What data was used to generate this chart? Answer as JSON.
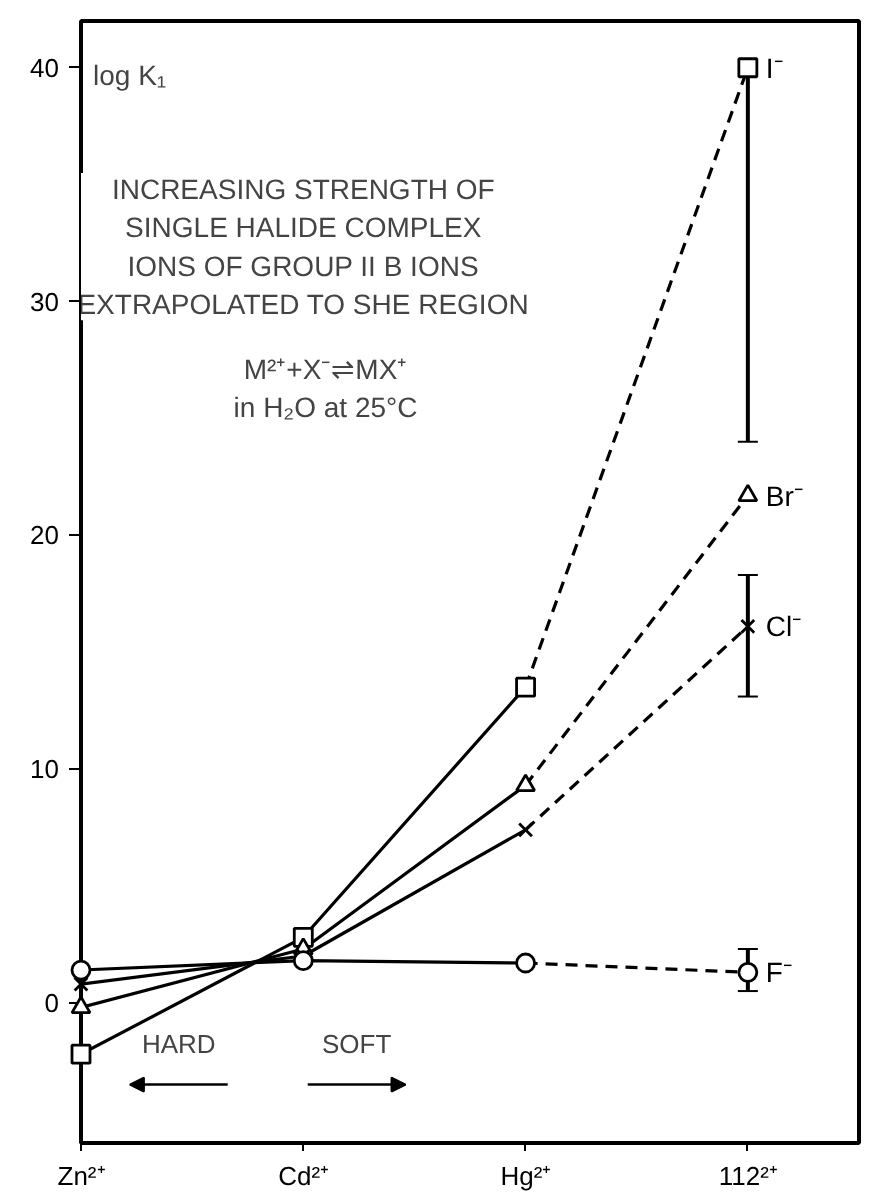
{
  "chart_data": {
    "type": "line",
    "title": "INCREASING STRENGTH OF\nSINGLE HALIDE COMPLEX\nIONS OF GROUP II B IONS\nEXTRAPOLATED TO SHE REGION",
    "subtitle": "M²⁺+X⁻⇌MX⁺\nin H₂O at 25°C",
    "ylabel": "log K₁",
    "categories": [
      "Zn²⁺",
      "Cd²⁺",
      "Hg²⁺",
      "112²⁺"
    ],
    "ylim": [
      -6,
      42
    ],
    "yticks": [
      0,
      10,
      20,
      30,
      40
    ],
    "grid": false,
    "series": [
      {
        "name": "I⁻",
        "values": [
          -2.2,
          2.8,
          13.5,
          40
        ],
        "color": "#000000",
        "marker": "square",
        "errors": [
          null,
          null,
          null,
          [
            24,
            40
          ]
        ]
      },
      {
        "name": "Br⁻",
        "values": [
          -0.2,
          2.3,
          9.3,
          21.7
        ],
        "color": "#000000",
        "marker": "triangle"
      },
      {
        "name": "Cl⁻",
        "values": [
          0.8,
          2.0,
          7.4,
          16.1
        ],
        "color": "#000000",
        "marker": "cross",
        "errors": [
          null,
          null,
          null,
          [
            13.1,
            18.3
          ]
        ]
      },
      {
        "name": "F⁻",
        "values": [
          1.4,
          1.8,
          1.7,
          1.3
        ],
        "color": "#000000",
        "marker": "circle",
        "errors": [
          null,
          null,
          null,
          [
            0.5,
            2.3
          ]
        ]
      }
    ],
    "annotations": [
      "HARD",
      "SOFT"
    ]
  }
}
